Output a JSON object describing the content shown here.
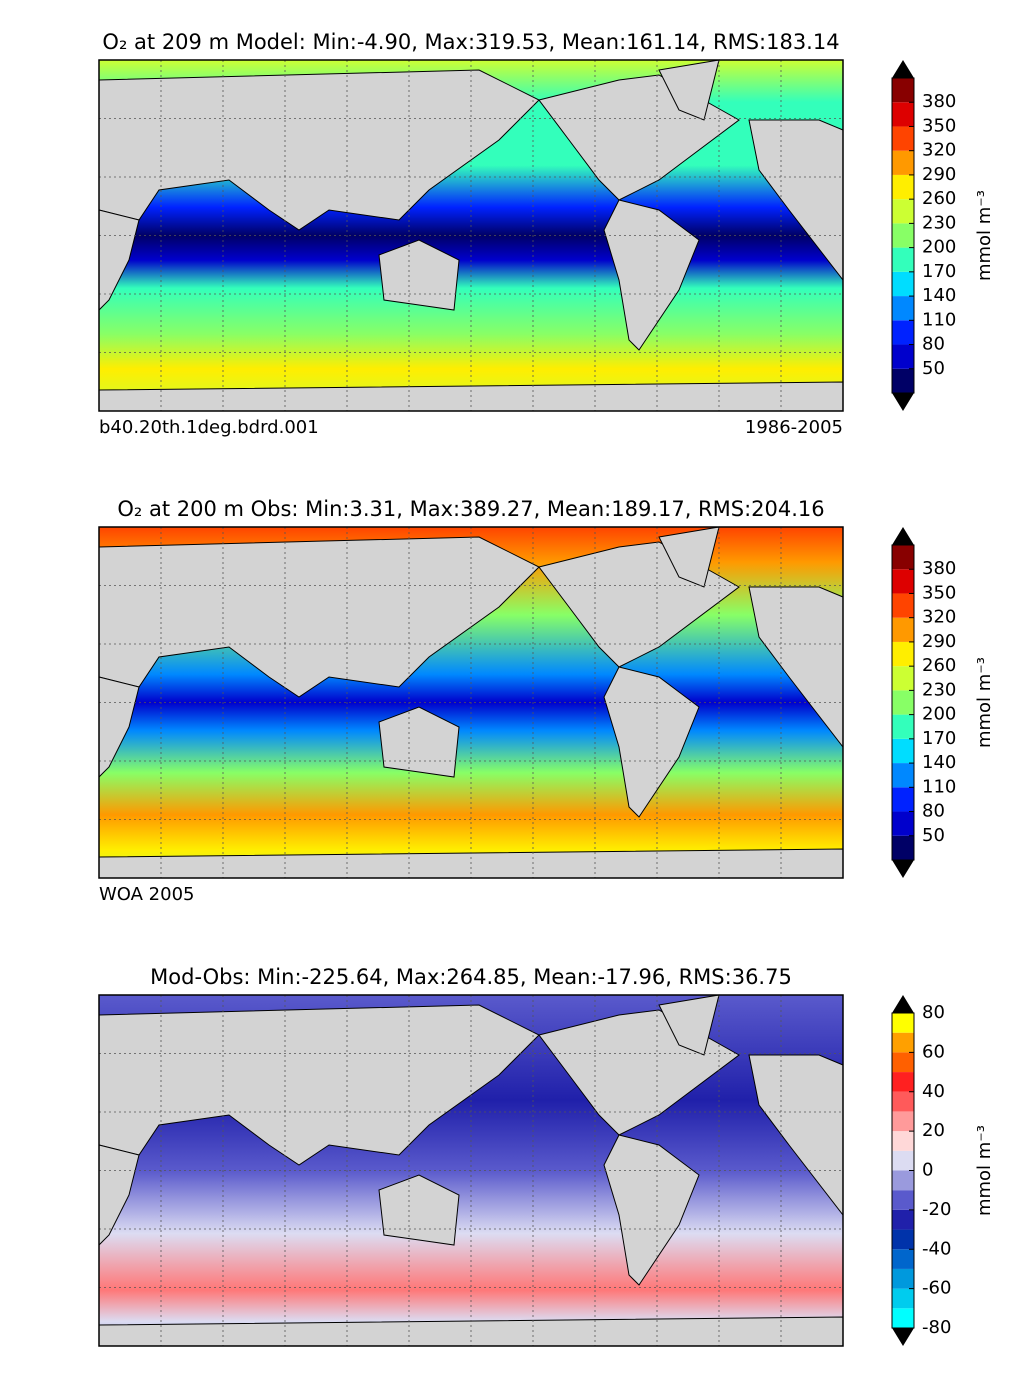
{
  "panels": [
    {
      "title": "O₂ at 209 m Model: Min:-4.90, Max:319.53, Mean:161.14, RMS:183.14",
      "caption_left": "b40.20th.1deg.bdrd.001",
      "caption_right": "1986-2005",
      "colorbar": {
        "label": "mmol m⁻³",
        "levels": [
          20,
          50,
          80,
          110,
          140,
          170,
          200,
          230,
          260,
          290,
          320,
          350,
          380,
          410
        ],
        "colors": [
          "#000066",
          "#0000cc",
          "#0022ff",
          "#0088ff",
          "#00ddff",
          "#33ffbb",
          "#88ff66",
          "#ccff33",
          "#ffee00",
          "#ff9900",
          "#ff4400",
          "#dd0000",
          "#880000"
        ],
        "ticks": [
          50,
          80,
          110,
          140,
          170,
          200,
          230,
          260,
          290,
          320,
          350,
          380
        ]
      }
    },
    {
      "title": "O₂ at 200 m Obs: Min:3.31, Max:389.27, Mean:189.17, RMS:204.16",
      "caption_left": "WOA 2005",
      "colorbar": {
        "label": "mmol m⁻³",
        "levels": [
          20,
          50,
          80,
          110,
          140,
          170,
          200,
          230,
          260,
          290,
          320,
          350,
          380,
          410
        ],
        "colors": [
          "#000066",
          "#0000cc",
          "#0022ff",
          "#0088ff",
          "#00ddff",
          "#33ffbb",
          "#88ff66",
          "#ccff33",
          "#ffee00",
          "#ff9900",
          "#ff4400",
          "#dd0000",
          "#880000"
        ],
        "ticks": [
          50,
          80,
          110,
          140,
          170,
          200,
          230,
          260,
          290,
          320,
          350,
          380
        ]
      }
    },
    {
      "title": "Mod-Obs: Min:-225.64, Max:264.85, Mean:-17.96, RMS:36.75",
      "colorbar": {
        "label": "mmol m⁻³",
        "levels": [
          -80,
          -70,
          -60,
          -50,
          -40,
          -30,
          -20,
          -10,
          0,
          10,
          20,
          30,
          40,
          50,
          60,
          70,
          80
        ],
        "colors": [
          "#00ffff",
          "#00ccee",
          "#0099dd",
          "#0066cc",
          "#0033aa",
          "#2020aa",
          "#5a5acc",
          "#9a9add",
          "#dcdcf2",
          "#ffd8d8",
          "#ff9a9a",
          "#ff5a5a",
          "#ff2020",
          "#ff6000",
          "#ffa000",
          "#ffff00"
        ],
        "ticks": [
          -80,
          -60,
          -40,
          -20,
          0,
          20,
          40,
          60,
          80
        ]
      }
    }
  ]
}
